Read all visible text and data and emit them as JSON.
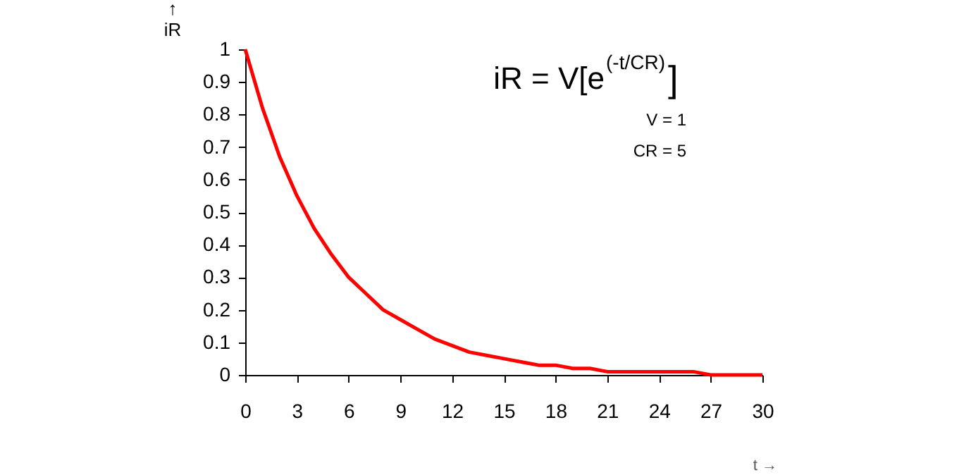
{
  "chart_data": {
    "type": "line",
    "xlabel": "t  →",
    "ylabel": "↑\niR",
    "x": [
      0,
      1,
      2,
      3,
      4,
      5,
      6,
      7,
      8,
      9,
      10,
      11,
      12,
      13,
      14,
      15,
      16,
      17,
      18,
      19,
      20,
      21,
      22,
      23,
      24,
      25,
      26,
      27,
      28,
      29,
      30
    ],
    "series": [
      {
        "color": "#ff0000",
        "values": [
          1,
          0.82,
          0.67,
          0.55,
          0.45,
          0.37,
          0.3,
          0.25,
          0.2,
          0.17,
          0.14,
          0.11,
          0.09,
          0.07,
          0.06,
          0.05,
          0.04,
          0.03,
          0.03,
          0.02,
          0.02,
          0.01,
          0.01,
          0.01,
          0.01,
          0.01,
          0.01,
          0.0,
          0.0,
          0.0,
          0.0
        ]
      }
    ],
    "xlim": [
      0,
      30
    ],
    "xticks": [
      0,
      3,
      6,
      9,
      12,
      15,
      18,
      21,
      24,
      27,
      30
    ],
    "ylim": [
      0,
      1
    ],
    "yticks": [
      0,
      0.1,
      0.2,
      0.3,
      0.4,
      0.5,
      0.6,
      0.7,
      0.8,
      0.9,
      1
    ],
    "annotations": [
      "iR = V[e$^{(-t/CR)}$]",
      "V = 1",
      "CR = 5"
    ],
    "grid": false,
    "legend": false,
    "marker": "none",
    "line_style": "solid"
  }
}
